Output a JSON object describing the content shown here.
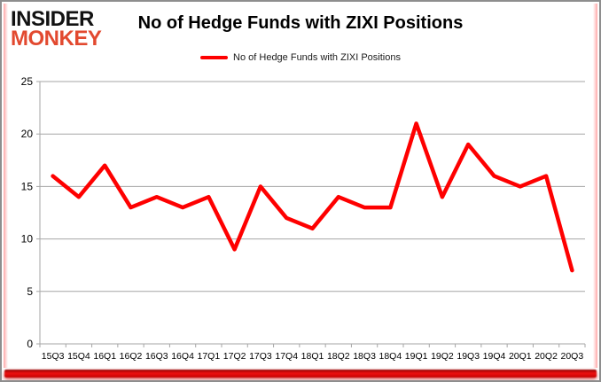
{
  "header": {
    "logo": {
      "line1": "INSIDER",
      "line2": "MONKEY"
    },
    "title": "No of Hedge Funds with ZIXI Positions",
    "legend": {
      "label": "No of Hedge Funds with ZIXI Positions"
    }
  },
  "chart_data": {
    "type": "line",
    "title": "No of Hedge Funds with ZIXI Positions",
    "categories": [
      "15Q3",
      "15Q4",
      "16Q1",
      "16Q2",
      "16Q3",
      "16Q4",
      "17Q1",
      "17Q2",
      "17Q3",
      "17Q4",
      "18Q1",
      "18Q2",
      "18Q3",
      "18Q4",
      "19Q1",
      "19Q2",
      "19Q3",
      "19Q4",
      "20Q1",
      "20Q2",
      "20Q3"
    ],
    "series": [
      {
        "name": "No of Hedge Funds with ZIXI Positions",
        "values": [
          16,
          14,
          17,
          13,
          14,
          13,
          14,
          9,
          15,
          12,
          11,
          14,
          13,
          13,
          21,
          14,
          19,
          16,
          15,
          16,
          7
        ]
      }
    ],
    "xlabel": "",
    "ylabel": "",
    "ylim": [
      0,
      25
    ],
    "ytick_step": 5,
    "grid": true,
    "legend_position": "top-center"
  },
  "colors": {
    "line": "#fe0000",
    "grid": "#a6a6a6",
    "axis_text": "#000000",
    "logo_black": "#121212",
    "logo_red": "#e2492f",
    "frame_border": "#8e8e8e",
    "ribbon": "#ee1111"
  }
}
